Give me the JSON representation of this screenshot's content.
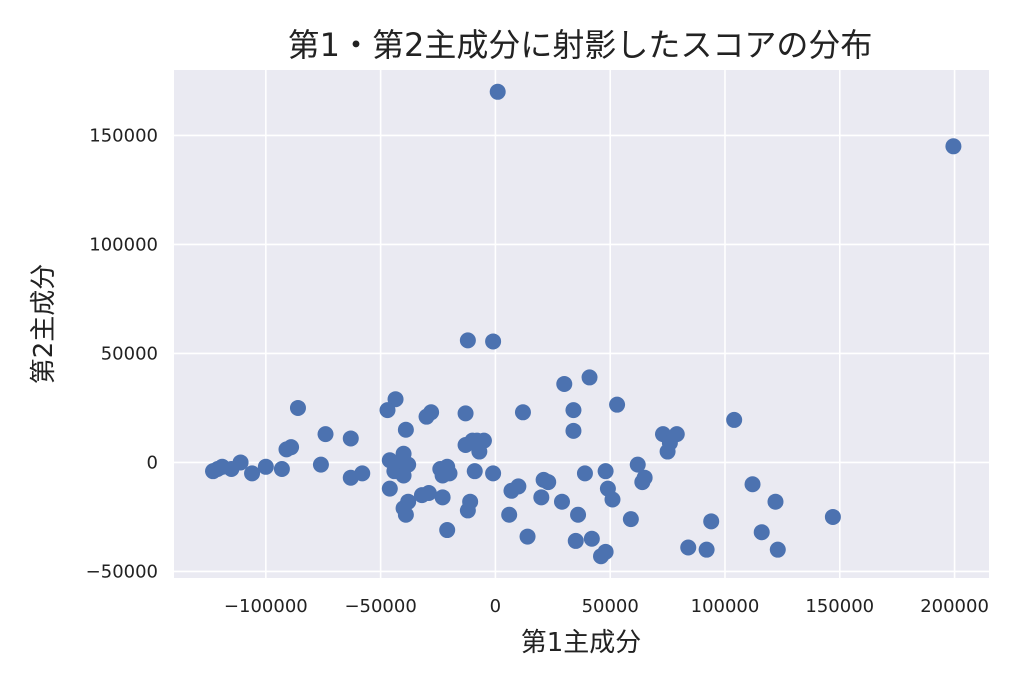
{
  "chart_data": {
    "type": "scatter",
    "title": "第1・第2主成分に射影したスコアの分布",
    "xlabel": "第1主成分",
    "ylabel": "第2主成分",
    "xlim": [
      -140000,
      215000
    ],
    "ylim": [
      -53000,
      180000
    ],
    "x_ticks": [
      -100000,
      -50000,
      0,
      50000,
      100000,
      150000,
      200000
    ],
    "x_tick_labels": [
      "−100000",
      "−50000",
      "0",
      "50000",
      "100000",
      "150000",
      "200000"
    ],
    "y_ticks": [
      -50000,
      0,
      50000,
      100000,
      150000
    ],
    "y_tick_labels": [
      "−50000",
      "0",
      "50000",
      "100000",
      "150000"
    ],
    "grid": true,
    "colors": {
      "background": "#eaeaf2",
      "grid": "#ffffff",
      "marker": "#4c72b0"
    },
    "points": [
      [
        1000,
        170000
      ],
      [
        199500,
        145000
      ],
      [
        -12000,
        56000
      ],
      [
        -1000,
        55500
      ],
      [
        41000,
        39000
      ],
      [
        30000,
        36000
      ],
      [
        -43500,
        29000
      ],
      [
        -47000,
        24000
      ],
      [
        -86000,
        25000
      ],
      [
        -28000,
        23000
      ],
      [
        -13000,
        22500
      ],
      [
        12000,
        23000
      ],
      [
        34000,
        24000
      ],
      [
        53000,
        26500
      ],
      [
        104000,
        19500
      ],
      [
        -30000,
        21000
      ],
      [
        -39000,
        15000
      ],
      [
        -74000,
        13000
      ],
      [
        -63000,
        11000
      ],
      [
        -89000,
        7000
      ],
      [
        -91000,
        6000
      ],
      [
        -10000,
        10000
      ],
      [
        -8000,
        10000
      ],
      [
        -5000,
        10000
      ],
      [
        -13000,
        8000
      ],
      [
        -7000,
        5000
      ],
      [
        34000,
        14500
      ],
      [
        73000,
        13000
      ],
      [
        76000,
        9000
      ],
      [
        75000,
        5000
      ],
      [
        79000,
        13000
      ],
      [
        -111000,
        0
      ],
      [
        -100000,
        -2000
      ],
      [
        -119000,
        -2000
      ],
      [
        -121000,
        -3000
      ],
      [
        -123000,
        -4000
      ],
      [
        -115000,
        -3000
      ],
      [
        -106000,
        -5000
      ],
      [
        -93000,
        -3000
      ],
      [
        -76000,
        -1000
      ],
      [
        -58000,
        -5000
      ],
      [
        -63000,
        -7000
      ],
      [
        -46000,
        1000
      ],
      [
        -40000,
        4000
      ],
      [
        -42000,
        -2000
      ],
      [
        -38000,
        -1000
      ],
      [
        -44000,
        -4000
      ],
      [
        -40000,
        -6000
      ],
      [
        -24000,
        -3000
      ],
      [
        -21000,
        -2000
      ],
      [
        -20000,
        -5000
      ],
      [
        -23000,
        -6000
      ],
      [
        -9000,
        -4000
      ],
      [
        -1000,
        -5000
      ],
      [
        -46000,
        -12000
      ],
      [
        -38000,
        -18000
      ],
      [
        -40000,
        -21000
      ],
      [
        -39000,
        -24000
      ],
      [
        -32000,
        -15000
      ],
      [
        -29000,
        -14000
      ],
      [
        -23000,
        -16000
      ],
      [
        -11000,
        -18000
      ],
      [
        -12000,
        -22000
      ],
      [
        -21000,
        -31000
      ],
      [
        7000,
        -13000
      ],
      [
        10000,
        -11000
      ],
      [
        6000,
        -24000
      ],
      [
        14000,
        -34000
      ],
      [
        21000,
        -8000
      ],
      [
        23000,
        -9000
      ],
      [
        20000,
        -16000
      ],
      [
        29000,
        -18000
      ],
      [
        36000,
        -24000
      ],
      [
        35000,
        -36000
      ],
      [
        42000,
        -35000
      ],
      [
        39000,
        -5000
      ],
      [
        48000,
        -4000
      ],
      [
        49000,
        -12000
      ],
      [
        51000,
        -17000
      ],
      [
        62000,
        -1000
      ],
      [
        65000,
        -7000
      ],
      [
        64000,
        -9000
      ],
      [
        59000,
        -26000
      ],
      [
        46000,
        -43000
      ],
      [
        48000,
        -41000
      ],
      [
        84000,
        -39000
      ],
      [
        92000,
        -40000
      ],
      [
        94000,
        -27000
      ],
      [
        112000,
        -10000
      ],
      [
        122000,
        -18000
      ],
      [
        116000,
        -32000
      ],
      [
        123000,
        -40000
      ],
      [
        147000,
        -25000
      ]
    ]
  }
}
